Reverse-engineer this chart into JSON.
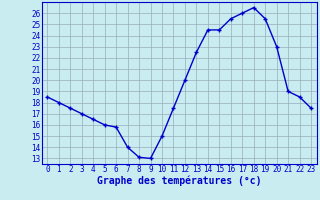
{
  "hours": [
    0,
    1,
    2,
    3,
    4,
    5,
    6,
    7,
    8,
    9,
    10,
    11,
    12,
    13,
    14,
    15,
    16,
    17,
    18,
    19,
    20,
    21,
    22,
    23
  ],
  "temps": [
    18.5,
    18.0,
    17.5,
    17.0,
    16.5,
    16.0,
    15.8,
    14.0,
    13.1,
    13.0,
    15.0,
    17.5,
    20.0,
    22.5,
    24.5,
    24.5,
    25.5,
    26.0,
    26.5,
    25.5,
    23.0,
    19.0,
    18.5,
    17.5
  ],
  "line_color": "#0000cc",
  "marker": "+",
  "marker_size": 3.5,
  "marker_lw": 1.0,
  "line_width": 1.0,
  "bg_color": "#c8ecf0",
  "grid_color": "#99aabb",
  "xlabel": "Graphe des températures (°c)",
  "xlabel_color": "#0000cc",
  "xlabel_fontsize": 7,
  "xlabel_bold": true,
  "yticks": [
    13,
    14,
    15,
    16,
    17,
    18,
    19,
    20,
    21,
    22,
    23,
    24,
    25,
    26
  ],
  "ylim": [
    12.5,
    27.0
  ],
  "xlim": [
    -0.5,
    23.5
  ],
  "tick_fontsize": 5.5,
  "spine_color": "#0000cc"
}
